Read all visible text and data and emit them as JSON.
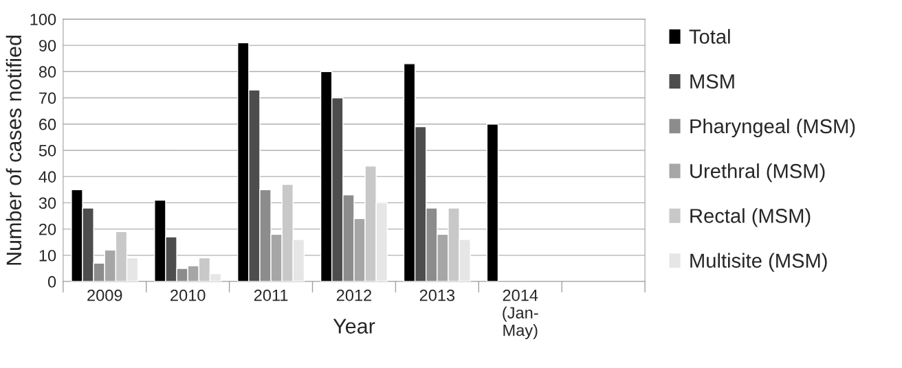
{
  "chart_data": {
    "type": "bar",
    "xlabel": "Year",
    "ylabel": "Number of cases notified",
    "categories": [
      "2009",
      "2010",
      "2011",
      "2012",
      "2013",
      "2014\n(Jan-\nMay)",
      null
    ],
    "series": [
      {
        "name": "Total",
        "color": "#000000",
        "values": [
          35,
          31,
          91,
          80,
          83,
          60,
          null
        ]
      },
      {
        "name": "MSM",
        "color": "#4d4d4d",
        "values": [
          28,
          17,
          73,
          70,
          59,
          null,
          null
        ]
      },
      {
        "name": "Pharyngeal (MSM)",
        "color": "#8c8c8c",
        "values": [
          7,
          5,
          35,
          33,
          28,
          null,
          null
        ]
      },
      {
        "name": "Urethral (MSM)",
        "color": "#a6a6a6",
        "values": [
          12,
          6,
          18,
          24,
          18,
          null,
          null
        ]
      },
      {
        "name": "Rectal (MSM)",
        "color": "#c8c8c8",
        "values": [
          19,
          9,
          37,
          44,
          28,
          null,
          null
        ]
      },
      {
        "name": "Multisite (MSM)",
        "color": "#e6e6e6",
        "values": [
          9,
          3,
          16,
          30,
          16,
          null,
          null
        ]
      }
    ],
    "ylim": [
      0,
      100
    ],
    "yticks": [
      0,
      10,
      20,
      30,
      40,
      50,
      60,
      70,
      80,
      90,
      100
    ],
    "grid": "y",
    "legend": "right"
  }
}
